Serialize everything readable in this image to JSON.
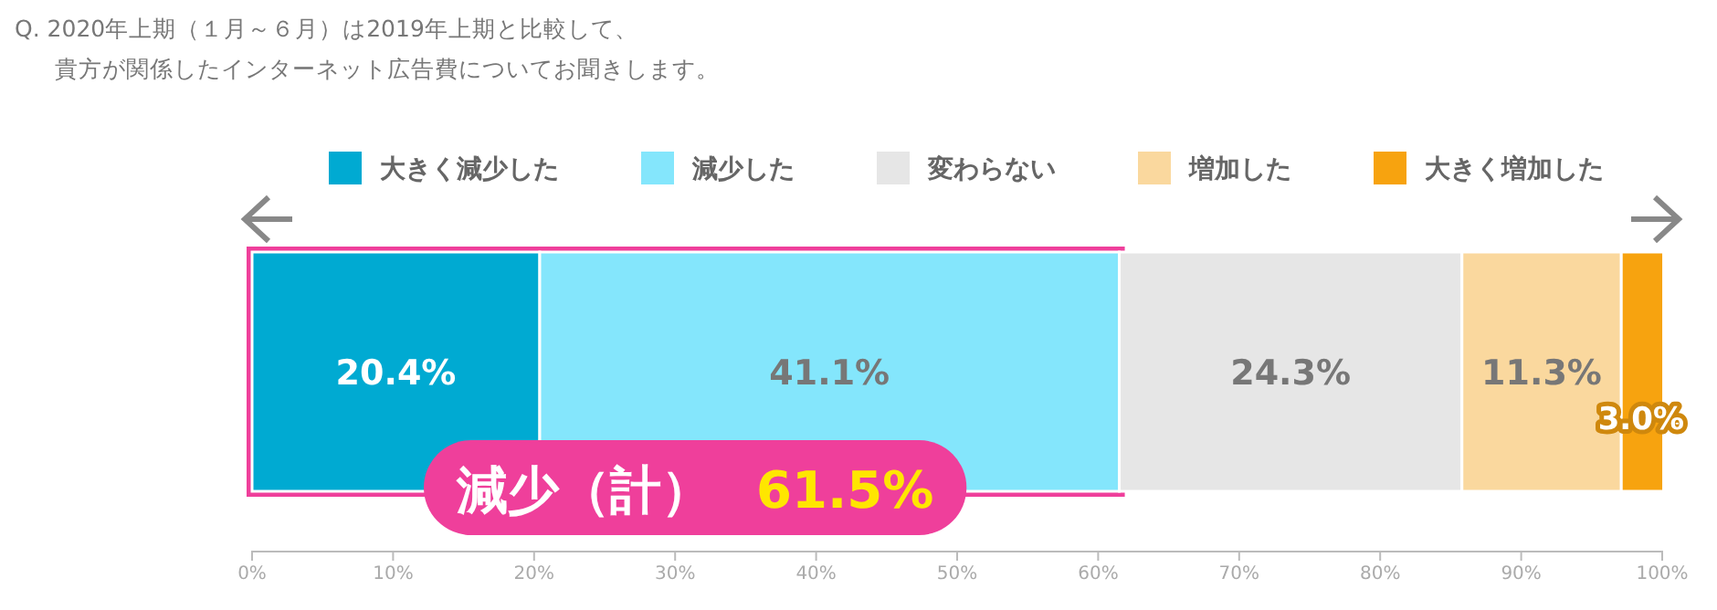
{
  "chart_data": {
    "type": "bar",
    "orientation": "horizontal",
    "stacked": true,
    "title": "Q.  2020年上期（１月～６月）は2019年上期と比較して、",
    "subtitle": "貴方が関係したインターネット広告費についてお聞きします。",
    "categories": [
      null
    ],
    "series": [
      {
        "name": "大きく減少した",
        "color": "#00aad2",
        "values": [
          20.4
        ],
        "value_labels": [
          "20.4%"
        ]
      },
      {
        "name": "減少した",
        "color": "#84e6fc",
        "values": [
          41.1
        ],
        "value_labels": [
          "41.1%"
        ]
      },
      {
        "name": "変わらない",
        "color": "#e6e6e6",
        "values": [
          24.3
        ],
        "value_labels": [
          "24.3%"
        ]
      },
      {
        "name": "増加した",
        "color": "#fad89e",
        "values": [
          11.3
        ],
        "value_labels": [
          "11.3%"
        ]
      },
      {
        "name": "大きく増加した",
        "color": "#f7a30f",
        "values": [
          3.0
        ],
        "value_labels": [
          "3.0%"
        ]
      }
    ],
    "xlim": [
      0,
      100
    ],
    "xticks": [
      {
        "value": 0,
        "label": "0%"
      },
      {
        "value": 10,
        "label": "10%"
      },
      {
        "value": 20,
        "label": "20%"
      },
      {
        "value": 30,
        "label": "30%"
      },
      {
        "value": 40,
        "label": "40%"
      },
      {
        "value": 50,
        "label": "50%"
      },
      {
        "value": 60,
        "label": "60%"
      },
      {
        "value": 70,
        "label": "70%"
      },
      {
        "value": 80,
        "label": "80%"
      },
      {
        "value": 90,
        "label": "90%"
      },
      {
        "value": 100,
        "label": "100%"
      }
    ],
    "bands": [
      {
        "axis": "x",
        "from": 0,
        "to": 61.5,
        "color": "#ef3f9b"
      }
    ],
    "annotations": [
      "減少（計）",
      "61.5%"
    ],
    "legend": "top"
  }
}
